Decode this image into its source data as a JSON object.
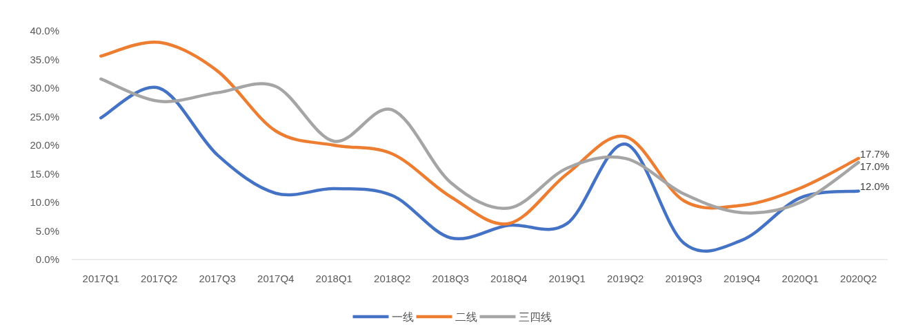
{
  "chart_data": {
    "type": "line",
    "categories": [
      "2017Q1",
      "2017Q2",
      "2017Q3",
      "2017Q4",
      "2018Q1",
      "2018Q2",
      "2018Q3",
      "2018Q4",
      "2019Q1",
      "2019Q2",
      "2019Q3",
      "2019Q4",
      "2020Q1",
      "2020Q2"
    ],
    "series": [
      {
        "name": "一线",
        "color": "#4472c4",
        "values": [
          24.8,
          30.0,
          18.3,
          11.6,
          12.4,
          11.2,
          3.8,
          6.0,
          6.3,
          20.2,
          2.9,
          3.4,
          10.8,
          12.0
        ],
        "value_labels": [
          null,
          null,
          null,
          null,
          null,
          null,
          null,
          null,
          null,
          null,
          null,
          null,
          null,
          "12.0%"
        ]
      },
      {
        "name": "二线",
        "color": "#ed7d31",
        "values": [
          35.6,
          38.0,
          33.0,
          22.5,
          20.0,
          18.5,
          11.0,
          6.3,
          15.0,
          21.5,
          10.3,
          9.5,
          12.5,
          17.7
        ],
        "value_labels": [
          null,
          null,
          null,
          null,
          null,
          null,
          null,
          null,
          null,
          null,
          null,
          null,
          null,
          "17.7%"
        ]
      },
      {
        "name": "三四线",
        "color": "#a5a5a5",
        "values": [
          31.6,
          27.7,
          29.2,
          30.3,
          20.7,
          26.2,
          13.5,
          9.0,
          16.0,
          17.7,
          11.5,
          8.2,
          10.0,
          17.0
        ],
        "value_labels": [
          null,
          null,
          null,
          null,
          null,
          null,
          null,
          null,
          null,
          null,
          null,
          null,
          null,
          "17.0%"
        ]
      }
    ],
    "ylim": [
      0,
      40
    ],
    "yticks": [
      {
        "value": 0,
        "label": "0.0%"
      },
      {
        "value": 5,
        "label": "5.0%"
      },
      {
        "value": 10,
        "label": "10.0%"
      },
      {
        "value": 15,
        "label": "15.0%"
      },
      {
        "value": 20,
        "label": "20.0%"
      },
      {
        "value": 25,
        "label": "25.0%"
      },
      {
        "value": 30,
        "label": "30.0%"
      },
      {
        "value": 35,
        "label": "35.0%"
      },
      {
        "value": 40,
        "label": "40.0%"
      }
    ],
    "legend": "bottom",
    "line_style": "solid"
  }
}
